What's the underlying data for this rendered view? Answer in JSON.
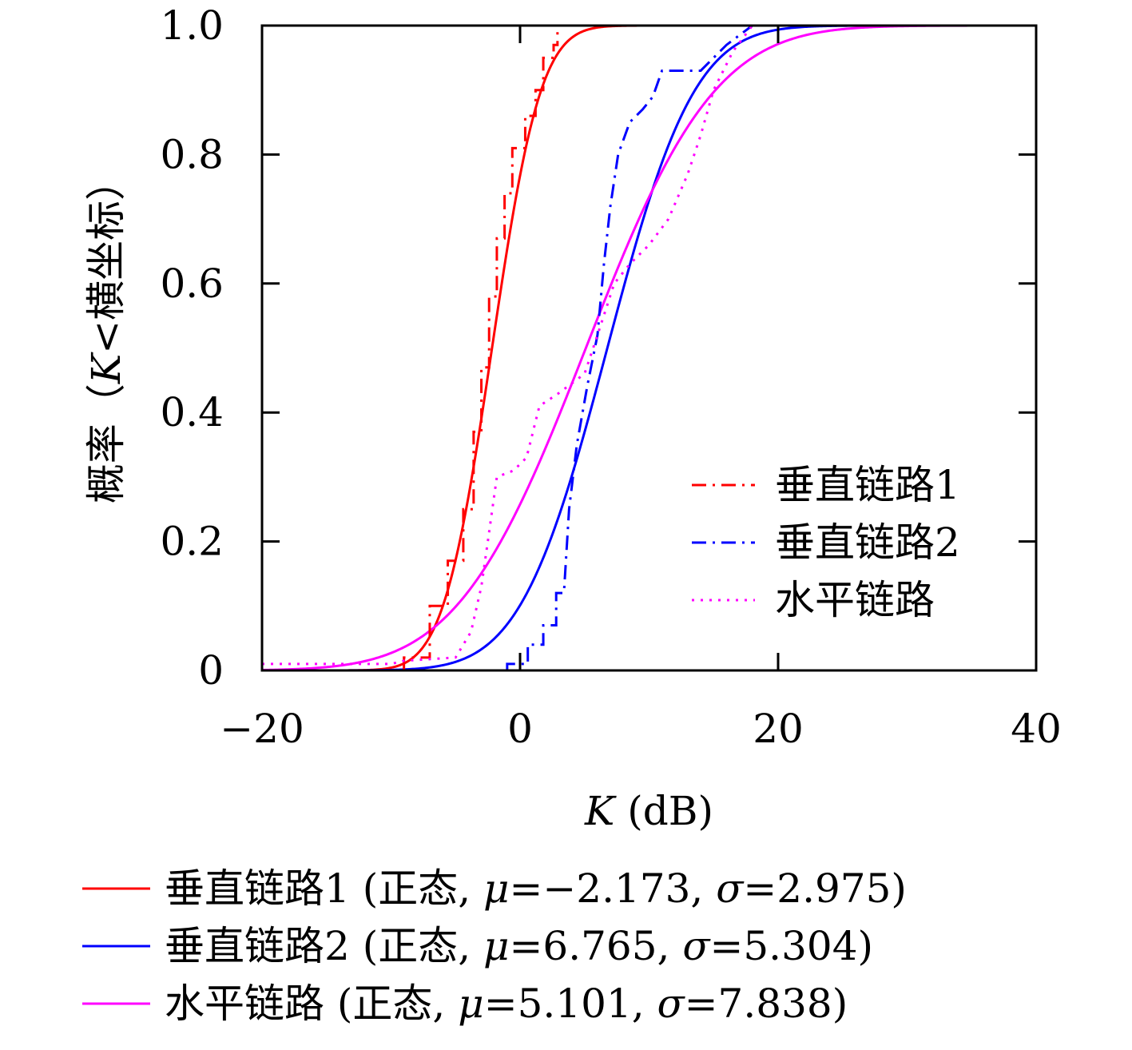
{
  "chart_data": {
    "type": "line",
    "xlabel": "K (dB)",
    "xlabel_var": "K",
    "xlabel_unit": " (dB)",
    "ylabel": "概率（K<横坐标）",
    "ylabel_prefix": "概率（",
    "ylabel_var": "K",
    "ylabel_suffix": "<横坐标）",
    "xlim": [
      -20,
      40
    ],
    "ylim": [
      0,
      1.0
    ],
    "x_ticks": [
      -20,
      0,
      20,
      40
    ],
    "x_tick_labels": [
      "−20",
      "0",
      "20",
      "40"
    ],
    "y_ticks": [
      0,
      0.2,
      0.4,
      0.6,
      0.8,
      1.0
    ],
    "y_tick_labels": [
      "0",
      "0.2",
      "0.4",
      "0.6",
      "0.8",
      "1.0"
    ],
    "grid": false,
    "legend_position": "lower-right",
    "empirical_series": [
      {
        "name": "垂直链路1",
        "color": "#ff0000",
        "style": "dashdot",
        "points": [
          [
            -9.0,
            0.0
          ],
          [
            -9.0,
            0.02
          ],
          [
            -7.0,
            0.02
          ],
          [
            -7.0,
            0.1
          ],
          [
            -5.6,
            0.1
          ],
          [
            -5.6,
            0.17
          ],
          [
            -4.4,
            0.17
          ],
          [
            -4.4,
            0.25
          ],
          [
            -3.6,
            0.25
          ],
          [
            -3.6,
            0.37
          ],
          [
            -3.0,
            0.37
          ],
          [
            -3.0,
            0.47
          ],
          [
            -2.4,
            0.47
          ],
          [
            -2.4,
            0.58
          ],
          [
            -1.8,
            0.58
          ],
          [
            -1.8,
            0.67
          ],
          [
            -1.2,
            0.67
          ],
          [
            -1.2,
            0.74
          ],
          [
            -0.6,
            0.74
          ],
          [
            -0.6,
            0.81
          ],
          [
            0.4,
            0.81
          ],
          [
            0.4,
            0.86
          ],
          [
            1.2,
            0.86
          ],
          [
            1.2,
            0.9
          ],
          [
            1.8,
            0.9
          ],
          [
            1.8,
            0.95
          ],
          [
            2.6,
            0.95
          ],
          [
            2.6,
            0.97
          ],
          [
            2.9,
            0.97
          ],
          [
            2.9,
            1.0
          ],
          [
            40,
            1.0
          ]
        ]
      },
      {
        "name": "垂直链路2",
        "color": "#0000ff",
        "style": "dashdot",
        "points": [
          [
            -1.0,
            0.0
          ],
          [
            -1.0,
            0.01
          ],
          [
            0.6,
            0.01
          ],
          [
            0.6,
            0.04
          ],
          [
            1.8,
            0.04
          ],
          [
            1.8,
            0.07
          ],
          [
            2.8,
            0.07
          ],
          [
            2.8,
            0.12
          ],
          [
            3.4,
            0.12
          ],
          [
            3.8,
            0.25
          ],
          [
            4.4,
            0.35
          ],
          [
            5.2,
            0.44
          ],
          [
            6.0,
            0.52
          ],
          [
            6.5,
            0.63
          ],
          [
            7.0,
            0.72
          ],
          [
            7.6,
            0.8
          ],
          [
            8.5,
            0.85
          ],
          [
            9.5,
            0.87
          ],
          [
            10.3,
            0.89
          ],
          [
            11.0,
            0.93
          ],
          [
            14.0,
            0.93
          ],
          [
            16.0,
            0.97
          ],
          [
            18.0,
            1.0
          ],
          [
            40,
            1.0
          ]
        ]
      },
      {
        "name": "水平链路",
        "color": "#ff00ff",
        "style": "dotted",
        "points": [
          [
            -20,
            0.01
          ],
          [
            -10,
            0.01
          ],
          [
            -9.0,
            0.015
          ],
          [
            -5.0,
            0.02
          ],
          [
            -3.8,
            0.06
          ],
          [
            -3.0,
            0.13
          ],
          [
            -2.5,
            0.2
          ],
          [
            -1.8,
            0.3
          ],
          [
            -0.5,
            0.31
          ],
          [
            0.5,
            0.33
          ],
          [
            1.5,
            0.41
          ],
          [
            3.0,
            0.43
          ],
          [
            5.0,
            0.46
          ],
          [
            6.0,
            0.52
          ],
          [
            7.3,
            0.6
          ],
          [
            8.5,
            0.63
          ],
          [
            10.0,
            0.66
          ],
          [
            11.5,
            0.7
          ],
          [
            13.0,
            0.77
          ],
          [
            14.0,
            0.83
          ],
          [
            15.0,
            0.9
          ],
          [
            16.5,
            0.96
          ],
          [
            18.0,
            1.0
          ],
          [
            40,
            1.0
          ]
        ]
      }
    ],
    "fitted_series": [
      {
        "name": "垂直链路1 (正态, μ=−2.173, σ=2.975)",
        "color": "#ff0000",
        "distribution": "normal",
        "mu": -2.173,
        "sigma": 2.975
      },
      {
        "name": "垂直链路2 (正态, μ=6.765, σ=5.304)",
        "color": "#0000ff",
        "distribution": "normal",
        "mu": 6.765,
        "sigma": 5.304
      },
      {
        "name": "水平链路 (正态, μ=5.101, σ=7.838)",
        "color": "#ff00ff",
        "distribution": "normal",
        "mu": 5.101,
        "sigma": 7.838
      }
    ],
    "inner_legend": [
      {
        "label": "垂直链路1",
        "color": "#ff0000",
        "style": "dashdot"
      },
      {
        "label": "垂直链路2",
        "color": "#0000ff",
        "style": "dashdot"
      },
      {
        "label": "水平链路",
        "color": "#ff00ff",
        "style": "dotted"
      }
    ],
    "bottom_legend": [
      {
        "color": "#ff0000",
        "label": "垂直链路1",
        "dist": "正态",
        "mu": "−2.173",
        "sigma": "2.975"
      },
      {
        "color": "#0000ff",
        "label": "垂直链路2",
        "dist": "正态",
        "mu": "6.765",
        "sigma": "5.304"
      },
      {
        "color": "#ff00ff",
        "label": "水平链路",
        "dist": "正态",
        "mu": "5.101",
        "sigma": "7.838"
      }
    ]
  }
}
